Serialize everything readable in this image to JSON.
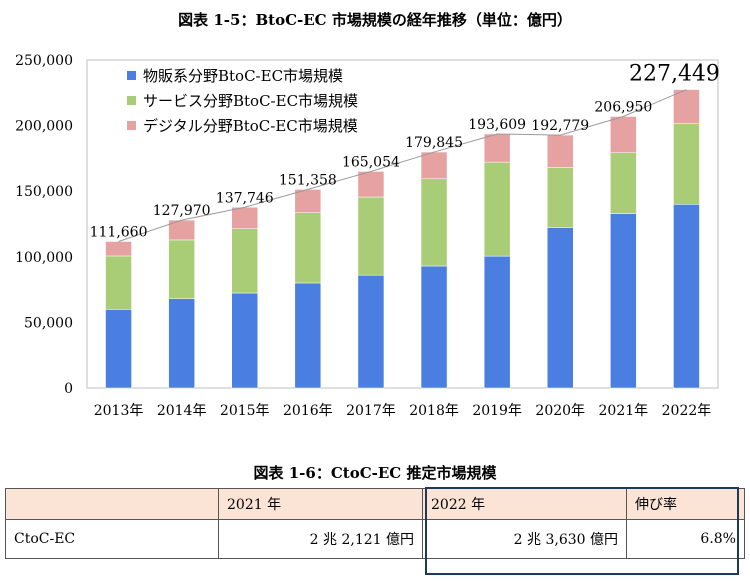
{
  "chart_title": "図表 1-5：BtoC-EC 市場規模の経年推移（単位：億円）",
  "chart_data": {
    "type": "bar",
    "stacked": true,
    "title": "図表 1-5：BtoC-EC 市場規模の経年推移（単位：億円）",
    "xlabel": "",
    "ylabel": "",
    "ylim": [
      0,
      250000
    ],
    "yticks": [
      "0",
      "50,000",
      "100,000",
      "150,000",
      "200,000",
      "250,000"
    ],
    "legend_position": "top-left",
    "categories": [
      "2013年",
      "2014年",
      "2015年",
      "2016年",
      "2017年",
      "2018年",
      "2019年",
      "2020年",
      "2021年",
      "2022年"
    ],
    "series": [
      {
        "name": "物販系分野BtoC-EC市場規模",
        "color": "#4a7ee0",
        "values": [
          59931,
          68043,
          72398,
          80043,
          86008,
          92992,
          100515,
          122333,
          132865,
          139997
        ]
      },
      {
        "name": "サービス分野BtoC-EC市場規模",
        "color": "#a9cc76",
        "values": [
          40712,
          44816,
          49014,
          53532,
          59568,
          66471,
          71672,
          45832,
          46424,
          61477
        ]
      },
      {
        "name": "デジタル分野BtoC-EC市場規模",
        "color": "#e6a1a1",
        "values": [
          11017,
          15111,
          16334,
          17783,
          19478,
          20382,
          21422,
          24614,
          27661,
          25975
        ]
      }
    ],
    "totals": [
      111660,
      127970,
      137746,
      151358,
      165054,
      179845,
      193609,
      192779,
      206950,
      227449
    ],
    "total_labels": [
      "111,660",
      "127,970",
      "137,746",
      "151,358",
      "165,054",
      "179,845",
      "193,609",
      "192,779",
      "206,950",
      "227,449"
    ]
  },
  "table": {
    "title": "図表 1-6：CtoC-EC 推定市場規模",
    "headers": [
      "",
      "2021 年",
      "2022 年",
      "伸び率"
    ],
    "rows": [
      {
        "label": "CtoC-EC",
        "v2021": "2 兆 2,121 億円",
        "v2022": "2 兆 3,630 億円",
        "growth": "6.8%"
      }
    ]
  }
}
